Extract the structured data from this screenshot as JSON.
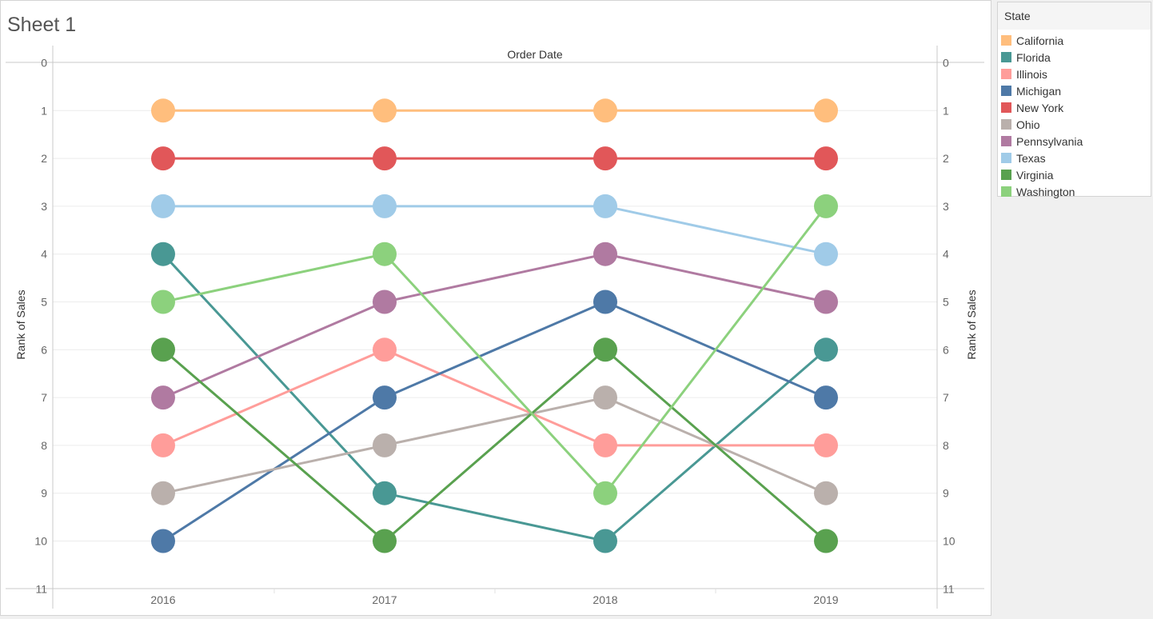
{
  "sheet": {
    "title": "Sheet 1"
  },
  "legend": {
    "title": "State"
  },
  "chart_data": {
    "type": "line",
    "header": "Order Date",
    "ylabel": "Rank of Sales",
    "ylabel_right": "Rank of Sales",
    "y_reversed": true,
    "ylim": [
      0,
      11
    ],
    "yticks": [
      "0",
      "1",
      "2",
      "3",
      "4",
      "5",
      "6",
      "7",
      "8",
      "9",
      "10",
      "11"
    ],
    "categories": [
      "2016",
      "2017",
      "2018",
      "2019"
    ],
    "legend_position": "right",
    "series": [
      {
        "name": "California",
        "color": "#ffbe7d",
        "values": [
          1,
          1,
          1,
          1
        ]
      },
      {
        "name": "Florida",
        "color": "#499894",
        "values": [
          4,
          9,
          10,
          6
        ]
      },
      {
        "name": "Illinois",
        "color": "#ff9d9a",
        "values": [
          8,
          6,
          8,
          8
        ]
      },
      {
        "name": "Michigan",
        "color": "#4e79a7",
        "values": [
          10,
          7,
          5,
          7
        ]
      },
      {
        "name": "New York",
        "color": "#e15759",
        "values": [
          2,
          2,
          2,
          2
        ]
      },
      {
        "name": "Ohio",
        "color": "#bab0ac",
        "values": [
          9,
          8,
          7,
          9
        ]
      },
      {
        "name": "Pennsylvania",
        "color": "#b07aa1",
        "values": [
          7,
          5,
          4,
          5
        ]
      },
      {
        "name": "Texas",
        "color": "#a0cbe8",
        "values": [
          3,
          3,
          3,
          4
        ]
      },
      {
        "name": "Virginia",
        "color": "#59a14f",
        "values": [
          6,
          10,
          6,
          10
        ]
      },
      {
        "name": "Washington",
        "color": "#8cd17d",
        "values": [
          5,
          4,
          9,
          3
        ]
      }
    ]
  }
}
